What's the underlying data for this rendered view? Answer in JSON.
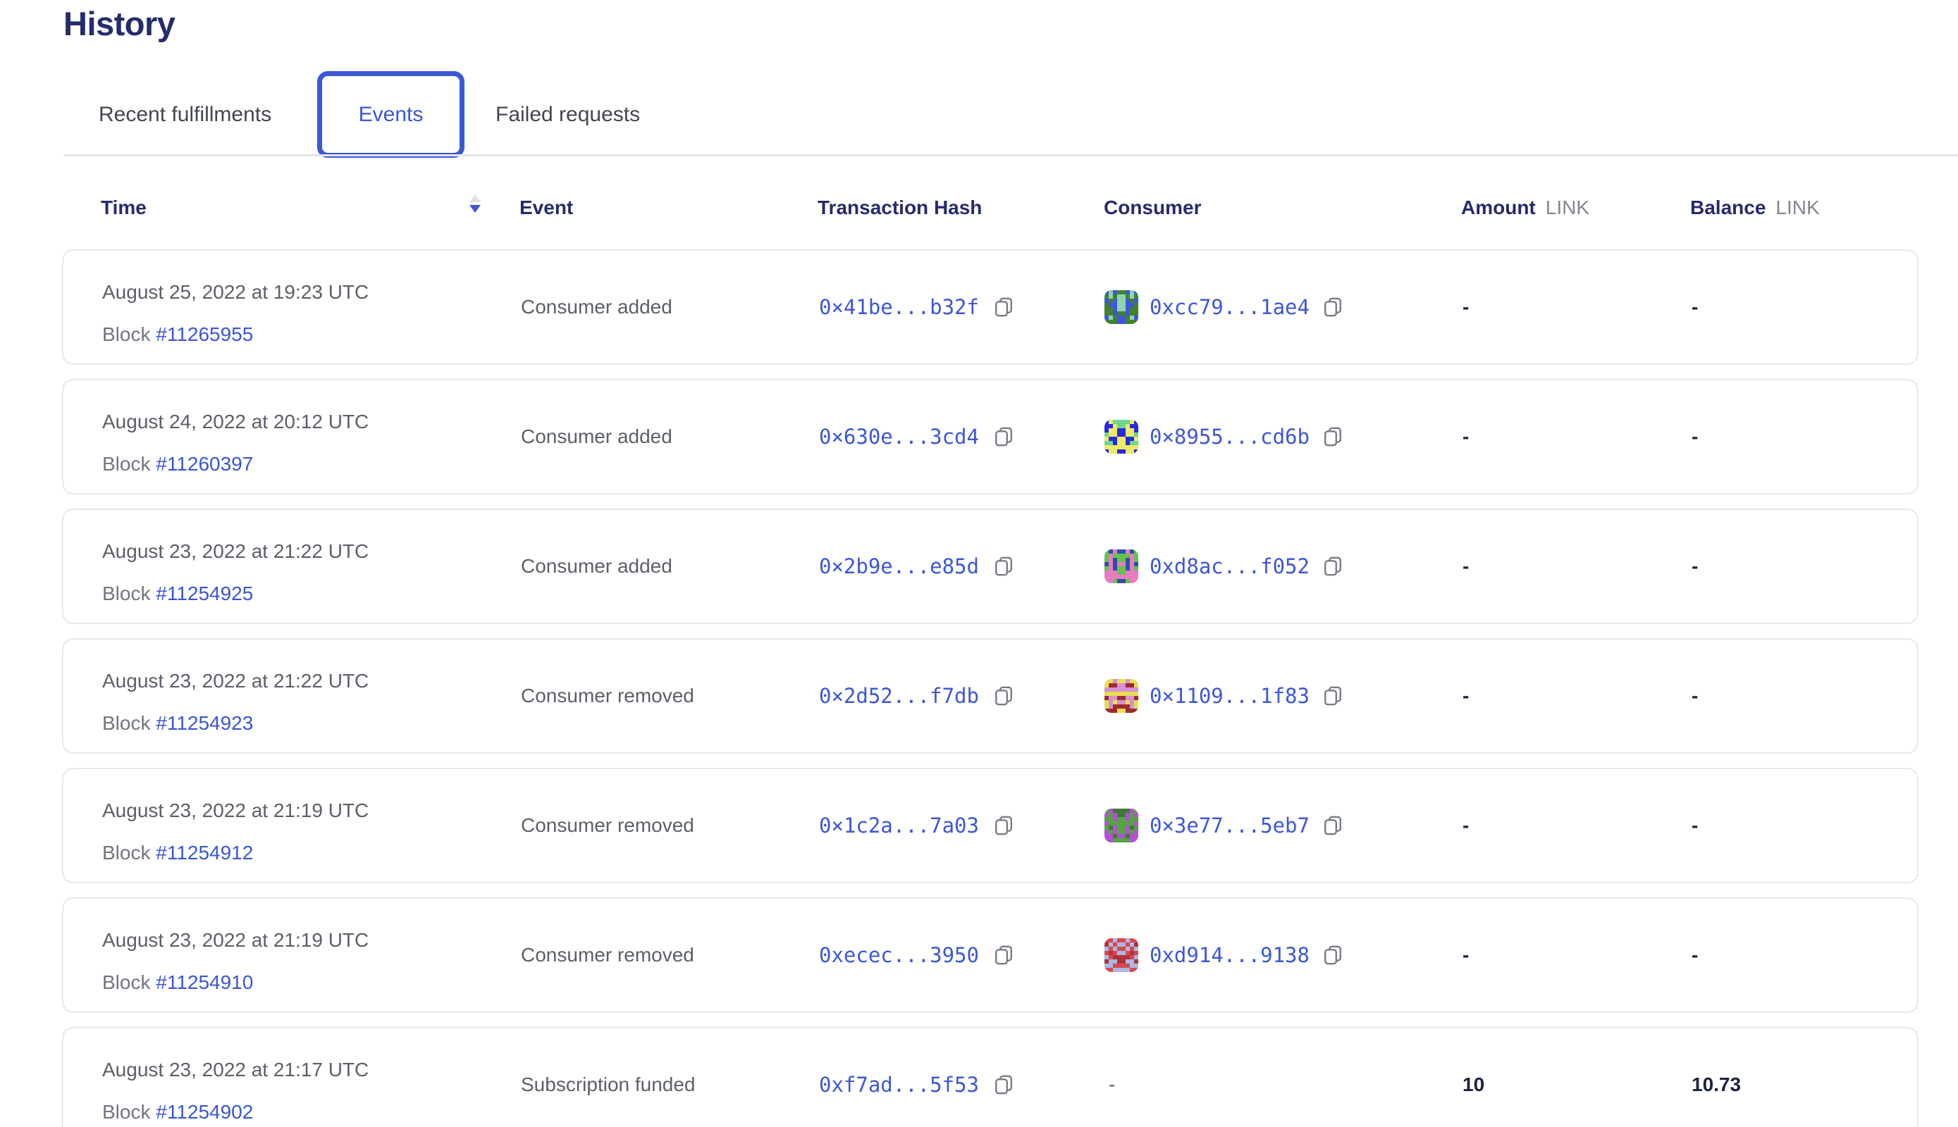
{
  "page": {
    "title": "History"
  },
  "tabs": {
    "recent": "Recent fulfillments",
    "events": "Events",
    "failed": "Failed requests",
    "active": "Events"
  },
  "columns": {
    "time": "Time",
    "event": "Event",
    "tx": "Transaction Hash",
    "consumer": "Consumer",
    "amount": "Amount",
    "balance": "Balance",
    "unit": "LINK"
  },
  "sort": {
    "column": "Time",
    "direction": "descending"
  },
  "rows": [
    {
      "date": "August 25, 2022 at 19:23 UTC",
      "block_label": "Block",
      "block": "#11265955",
      "event": "Consumer added",
      "tx": "0×41be...b32f",
      "consumer": "0xcc79...1ae4",
      "amount": "-",
      "balance": "-",
      "avatar": {
        "seed": 955,
        "bg": "#41822d",
        "fg": "#3f55e2",
        "spot": "#8fd3ae"
      }
    },
    {
      "date": "August 24, 2022 at 20:12 UTC",
      "block_label": "Block",
      "block": "#11260397",
      "event": "Consumer added",
      "tx": "0×630e...3cd4",
      "consumer": "0×8955...cd6b",
      "amount": "-",
      "balance": "-",
      "avatar": {
        "seed": 397,
        "bg": "#2629dd",
        "fg": "#eeeb66",
        "spot": "#6bd693"
      }
    },
    {
      "date": "August 23, 2022 at 21:22 UTC",
      "block_label": "Block",
      "block": "#11254925",
      "event": "Consumer added",
      "tx": "0×2b9e...e85d",
      "consumer": "0xd8ac...f052",
      "amount": "-",
      "balance": "-",
      "avatar": {
        "seed": 4925,
        "bg": "#66c24f",
        "fg": "#e77cc3",
        "spot": "#2d4fa4"
      }
    },
    {
      "date": "August 23, 2022 at 21:22 UTC",
      "block_label": "Block",
      "block": "#11254923",
      "event": "Consumer removed",
      "tx": "0×2d52...f7db",
      "consumer": "0×1109...1f83",
      "amount": "-",
      "balance": "-",
      "avatar": {
        "seed": 4923,
        "bg": "#d78fd6",
        "fg": "#e5e04e",
        "spot": "#a02a2e"
      }
    },
    {
      "date": "August 23, 2022 at 21:19 UTC",
      "block_label": "Block",
      "block": "#11254912",
      "event": "Consumer removed",
      "tx": "0×1c2a...7a03",
      "consumer": "0×3e77...5eb7",
      "amount": "-",
      "balance": "-",
      "avatar": {
        "seed": 4912,
        "bg": "#56a344",
        "fg": "#b44fd6",
        "spot": "#3f7a33"
      }
    },
    {
      "date": "August 23, 2022 at 21:19 UTC",
      "block_label": "Block",
      "block": "#11254910",
      "event": "Consumer removed",
      "tx": "0xecec...3950",
      "consumer": "0xd914...9138",
      "amount": "-",
      "balance": "-",
      "avatar": {
        "seed": 4910,
        "bg": "#d7494f",
        "fg": "#a9b8e6",
        "spot": "#b03339"
      }
    },
    {
      "date": "August 23, 2022 at 21:17 UTC",
      "block_label": "Block",
      "block": "#11254902",
      "event": "Subscription funded",
      "tx": "0xf7ad...5f53",
      "consumer": "-",
      "amount": "10",
      "balance": "10.73",
      "avatar": null
    }
  ],
  "colors": {
    "accent_blue": "#3b57d8",
    "link_blue": "#3c57d8",
    "heading_navy": "#252c6d",
    "body_gray": "#5b6069",
    "card_border": "#e7e8eb"
  }
}
